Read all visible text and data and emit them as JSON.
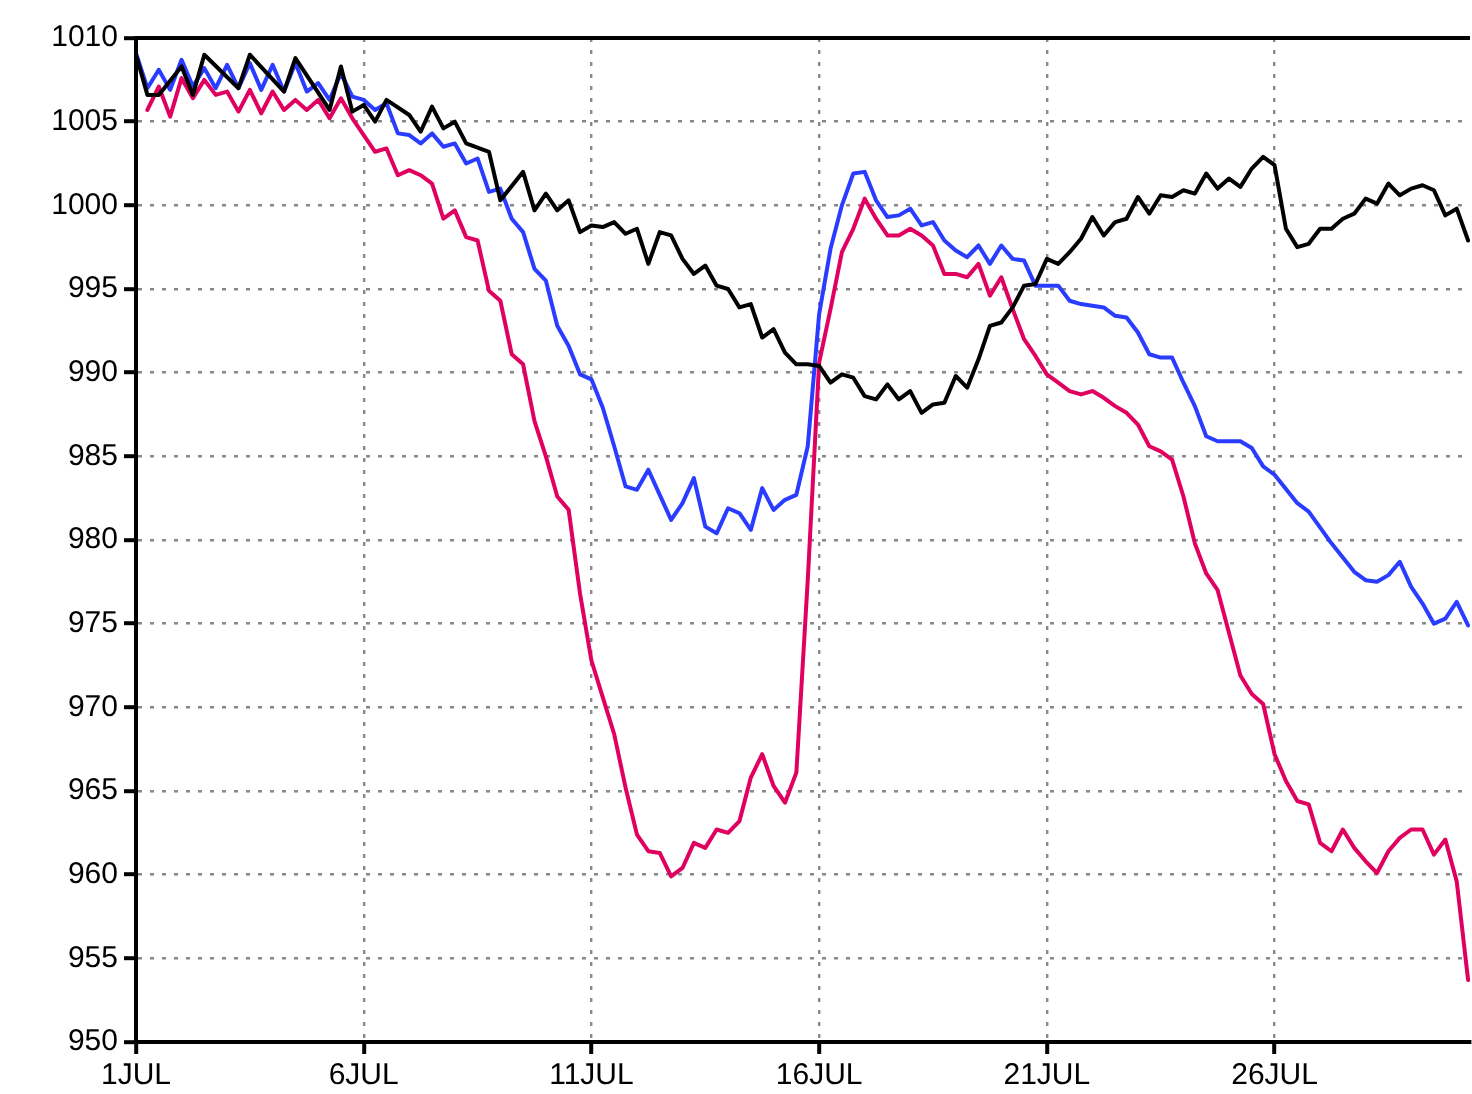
{
  "chart_data": {
    "type": "line",
    "line_style": "solid",
    "marker": "none",
    "grid": true,
    "legend": false,
    "xlim": [
      "--07-01T00:00",
      "--07-30T07:00"
    ],
    "xticks": [
      {
        "value": "--07-01",
        "label": "1JUL"
      },
      {
        "value": "--07-06",
        "label": "6JUL"
      },
      {
        "value": "--07-11",
        "label": "11JUL"
      },
      {
        "value": "--07-16",
        "label": "16JUL"
      },
      {
        "value": "--07-21",
        "label": "21JUL"
      },
      {
        "value": "--07-26",
        "label": "26JUL"
      }
    ],
    "ylim": [
      950,
      1010
    ],
    "yticks": [
      950,
      955,
      960,
      965,
      970,
      975,
      980,
      985,
      990,
      995,
      1000,
      1005,
      1010
    ],
    "series": [
      {
        "color": "#000000",
        "x": [
          "--07-01T00:00",
          "--07-01T06:00",
          "--07-01T12:00",
          "--07-02T00:00",
          "--07-02T06:00",
          "--07-02T12:00",
          "--07-03T06:00",
          "--07-03T12:00",
          "--07-04T06:00",
          "--07-04T12:00",
          "--07-05T06:00",
          "--07-05T12:00",
          "--07-05T18:00",
          "--07-06T00:00",
          "--07-06T06:00",
          "--07-06T12:00",
          "--07-07T00:00",
          "--07-07T06:00",
          "--07-07T12:00",
          "--07-07T18:00",
          "--07-08T00:00",
          "--07-08T06:00",
          "--07-08T18:00",
          "--07-09T00:00",
          "--07-09T12:00",
          "--07-09T18:00",
          "--07-10T00:00",
          "--07-10T06:00",
          "--07-10T12:00",
          "--07-10T18:00",
          "--07-11T00:00",
          "--07-11T06:00",
          "--07-11T12:00",
          "--07-11T18:00",
          "--07-12T00:00",
          "--07-12T06:00",
          "--07-12T12:00",
          "--07-12T18:00",
          "--07-13T00:00",
          "--07-13T06:00",
          "--07-13T12:00",
          "--07-13T18:00",
          "--07-14T00:00",
          "--07-14T06:00",
          "--07-14T12:00",
          "--07-14T18:00",
          "--07-15T00:00",
          "--07-15T06:00",
          "--07-15T12:00",
          "--07-15T18:00",
          "--07-16T00:00",
          "--07-16T06:00",
          "--07-16T12:00",
          "--07-16T18:00",
          "--07-17T00:00",
          "--07-17T06:00",
          "--07-17T12:00",
          "--07-17T18:00",
          "--07-18T00:00",
          "--07-18T06:00",
          "--07-18T12:00",
          "--07-18T18:00",
          "--07-19T00:00",
          "--07-19T06:00",
          "--07-19T12:00",
          "--07-19T18:00",
          "--07-20T00:00",
          "--07-20T06:00",
          "--07-20T12:00",
          "--07-20T18:00",
          "--07-21T00:00",
          "--07-21T06:00",
          "--07-21T12:00",
          "--07-21T18:00",
          "--07-22T00:00",
          "--07-22T06:00",
          "--07-22T12:00",
          "--07-22T18:00",
          "--07-23T00:00",
          "--07-23T06:00",
          "--07-23T12:00",
          "--07-23T18:00",
          "--07-24T00:00",
          "--07-24T06:00",
          "--07-24T12:00",
          "--07-24T18:00",
          "--07-25T00:00",
          "--07-25T06:00",
          "--07-25T12:00",
          "--07-25T18:00",
          "--07-26T00:00",
          "--07-26T06:00",
          "--07-26T12:00",
          "--07-26T18:00",
          "--07-27T00:00",
          "--07-27T06:00",
          "--07-27T12:00",
          "--07-27T18:00",
          "--07-28T00:00",
          "--07-28T06:00",
          "--07-28T12:00",
          "--07-28T18:00",
          "--07-29T00:00",
          "--07-29T06:00",
          "--07-29T12:00",
          "--07-29T18:00",
          "--07-30T00:00",
          "--07-30T06:00"
        ],
        "values": [
          1009.0,
          1006.6,
          1006.6,
          1008.3,
          1006.6,
          1009.0,
          1007.0,
          1009.0,
          1006.8,
          1008.8,
          1005.7,
          1008.3,
          1005.6,
          1006.0,
          1005.0,
          1006.3,
          1005.4,
          1004.4,
          1005.9,
          1004.6,
          1005.0,
          1003.7,
          1003.2,
          1000.3,
          1002.0,
          999.7,
          1000.7,
          999.7,
          1000.3,
          998.4,
          998.8,
          998.7,
          999.0,
          998.3,
          998.6,
          996.5,
          998.4,
          998.2,
          996.8,
          995.9,
          996.4,
          995.2,
          995.0,
          993.9,
          994.1,
          992.1,
          992.6,
          991.2,
          990.5,
          990.5,
          990.4,
          989.4,
          989.9,
          989.7,
          988.6,
          988.4,
          989.3,
          988.4,
          988.9,
          987.6,
          988.1,
          988.2,
          989.8,
          989.1,
          990.8,
          992.8,
          993.0,
          993.9,
          995.2,
          995.3,
          996.8,
          996.5,
          997.2,
          998.0,
          999.3,
          998.2,
          999.0,
          999.2,
          1000.5,
          999.5,
          1000.6,
          1000.5,
          1000.9,
          1000.7,
          1001.9,
          1001.0,
          1001.6,
          1001.1,
          1002.2,
          1002.9,
          1002.4,
          998.6,
          997.5,
          997.7,
          998.6,
          998.6,
          999.2,
          999.5,
          1000.4,
          1000.1,
          1001.3,
          1000.6,
          1001.0,
          1001.2,
          1000.9,
          999.4,
          999.8,
          997.9
        ]
      },
      {
        "color": "#2a3cff",
        "x": [
          "--07-01T00:00",
          "--07-01T06:00",
          "--07-01T12:00",
          "--07-01T18:00",
          "--07-02T00:00",
          "--07-02T06:00",
          "--07-02T12:00",
          "--07-02T18:00",
          "--07-03T00:00",
          "--07-03T06:00",
          "--07-03T12:00",
          "--07-03T18:00",
          "--07-04T00:00",
          "--07-04T06:00",
          "--07-04T12:00",
          "--07-04T18:00",
          "--07-05T00:00",
          "--07-05T06:00",
          "--07-05T12:00",
          "--07-05T18:00",
          "--07-06T00:00",
          "--07-06T06:00",
          "--07-06T12:00",
          "--07-06T18:00",
          "--07-07T00:00",
          "--07-07T06:00",
          "--07-07T12:00",
          "--07-07T18:00",
          "--07-08T00:00",
          "--07-08T06:00",
          "--07-08T12:00",
          "--07-08T18:00",
          "--07-09T00:00",
          "--07-09T06:00",
          "--07-09T12:00",
          "--07-09T18:00",
          "--07-10T00:00",
          "--07-10T06:00",
          "--07-10T12:00",
          "--07-10T18:00",
          "--07-11T00:00",
          "--07-11T06:00",
          "--07-11T12:00",
          "--07-11T18:00",
          "--07-12T00:00",
          "--07-12T06:00",
          "--07-12T12:00",
          "--07-12T18:00",
          "--07-13T00:00",
          "--07-13T06:00",
          "--07-13T12:00",
          "--07-13T18:00",
          "--07-14T00:00",
          "--07-14T06:00",
          "--07-14T12:00",
          "--07-14T18:00",
          "--07-15T00:00",
          "--07-15T06:00",
          "--07-15T12:00",
          "--07-15T18:00",
          "--07-16T00:00",
          "--07-16T06:00",
          "--07-16T12:00",
          "--07-16T18:00",
          "--07-17T00:00",
          "--07-17T06:00",
          "--07-17T12:00",
          "--07-17T18:00",
          "--07-18T00:00",
          "--07-18T06:00",
          "--07-18T12:00",
          "--07-18T18:00",
          "--07-19T00:00",
          "--07-19T06:00",
          "--07-19T12:00",
          "--07-19T18:00",
          "--07-20T00:00",
          "--07-20T06:00",
          "--07-20T12:00",
          "--07-20T18:00",
          "--07-21T06:00",
          "--07-21T12:00",
          "--07-21T18:00",
          "--07-22T06:00",
          "--07-22T12:00",
          "--07-22T18:00",
          "--07-23T00:00",
          "--07-23T06:00",
          "--07-23T12:00",
          "--07-23T18:00",
          "--07-24T00:00",
          "--07-24T06:00",
          "--07-24T12:00",
          "--07-24T18:00",
          "--07-25T00:00",
          "--07-25T06:00",
          "--07-25T12:00",
          "--07-25T18:00",
          "--07-26T00:00",
          "--07-26T12:00",
          "--07-26T18:00",
          "--07-27T06:00",
          "--07-27T18:00",
          "--07-28T00:00",
          "--07-28T06:00",
          "--07-28T12:00",
          "--07-28T18:00",
          "--07-29T00:00",
          "--07-29T06:00",
          "--07-29T12:00",
          "--07-29T18:00",
          "--07-30T00:00",
          "--07-30T06:00"
        ],
        "values": [
          1009.1,
          1007.0,
          1008.1,
          1006.9,
          1008.7,
          1007.1,
          1008.2,
          1007.0,
          1008.4,
          1007.0,
          1008.5,
          1006.9,
          1008.4,
          1006.8,
          1008.5,
          1006.8,
          1007.3,
          1006.3,
          1007.9,
          1006.5,
          1006.3,
          1005.7,
          1006.1,
          1004.3,
          1004.2,
          1003.7,
          1004.3,
          1003.5,
          1003.7,
          1002.5,
          1002.8,
          1000.8,
          1001.0,
          999.2,
          998.4,
          996.2,
          995.5,
          992.8,
          991.6,
          989.9,
          989.6,
          987.9,
          985.6,
          983.2,
          983.0,
          984.2,
          982.7,
          981.2,
          982.2,
          983.7,
          980.8,
          980.4,
          981.9,
          981.6,
          980.6,
          983.1,
          981.8,
          982.4,
          982.7,
          985.6,
          993.5,
          997.4,
          1000.0,
          1001.9,
          1002.0,
          1000.3,
          999.3,
          999.4,
          999.8,
          998.8,
          999.0,
          997.9,
          997.3,
          996.9,
          997.6,
          996.5,
          997.6,
          996.8,
          996.7,
          995.2,
          995.2,
          994.3,
          994.1,
          993.9,
          993.4,
          993.3,
          992.4,
          991.1,
          990.9,
          990.9,
          989.4,
          988.0,
          986.2,
          985.9,
          985.9,
          985.9,
          985.5,
          984.4,
          983.9,
          982.2,
          981.7,
          979.8,
          978.1,
          977.6,
          977.5,
          977.9,
          978.7,
          977.2,
          976.2,
          975.0,
          975.3,
          976.3,
          974.9
        ]
      },
      {
        "color": "#e0005f",
        "x": [
          "--07-01T06:00",
          "--07-01T12:00",
          "--07-01T18:00",
          "--07-02T00:00",
          "--07-02T06:00",
          "--07-02T12:00",
          "--07-02T18:00",
          "--07-03T00:00",
          "--07-03T06:00",
          "--07-03T12:00",
          "--07-03T18:00",
          "--07-04T00:00",
          "--07-04T06:00",
          "--07-04T12:00",
          "--07-04T18:00",
          "--07-05T00:00",
          "--07-05T06:00",
          "--07-05T12:00",
          "--07-05T18:00",
          "--07-06T00:00",
          "--07-06T06:00",
          "--07-06T12:00",
          "--07-06T18:00",
          "--07-07T00:00",
          "--07-07T06:00",
          "--07-07T12:00",
          "--07-07T18:00",
          "--07-08T00:00",
          "--07-08T06:00",
          "--07-08T12:00",
          "--07-08T18:00",
          "--07-09T00:00",
          "--07-09T06:00",
          "--07-09T12:00",
          "--07-09T18:00",
          "--07-10T00:00",
          "--07-10T06:00",
          "--07-10T12:00",
          "--07-10T18:00",
          "--07-11T00:00",
          "--07-11T06:00",
          "--07-11T12:00",
          "--07-11T18:00",
          "--07-12T00:00",
          "--07-12T06:00",
          "--07-12T12:00",
          "--07-12T18:00",
          "--07-13T00:00",
          "--07-13T06:00",
          "--07-13T12:00",
          "--07-13T18:00",
          "--07-14T00:00",
          "--07-14T06:00",
          "--07-14T12:00",
          "--07-14T18:00",
          "--07-15T00:00",
          "--07-15T06:00",
          "--07-15T12:00",
          "--07-15T18:00",
          "--07-16T00:00",
          "--07-16T06:00",
          "--07-16T12:00",
          "--07-16T18:00",
          "--07-17T00:00",
          "--07-17T06:00",
          "--07-17T12:00",
          "--07-17T18:00",
          "--07-18T00:00",
          "--07-18T06:00",
          "--07-18T12:00",
          "--07-18T18:00",
          "--07-19T00:00",
          "--07-19T06:00",
          "--07-19T12:00",
          "--07-19T18:00",
          "--07-20T00:00",
          "--07-20T06:00",
          "--07-20T12:00",
          "--07-20T18:00",
          "--07-21T00:00",
          "--07-21T06:00",
          "--07-21T12:00",
          "--07-21T18:00",
          "--07-22T00:00",
          "--07-22T06:00",
          "--07-22T12:00",
          "--07-22T18:00",
          "--07-23T00:00",
          "--07-23T06:00",
          "--07-23T12:00",
          "--07-23T18:00",
          "--07-24T00:00",
          "--07-24T06:00",
          "--07-24T12:00",
          "--07-24T18:00",
          "--07-25T06:00",
          "--07-25T12:00",
          "--07-25T18:00",
          "--07-26T00:00",
          "--07-26T06:00",
          "--07-26T12:00",
          "--07-26T18:00",
          "--07-27T00:00",
          "--07-27T06:00",
          "--07-27T12:00",
          "--07-27T18:00",
          "--07-28T00:00",
          "--07-28T06:00",
          "--07-28T12:00",
          "--07-28T18:00",
          "--07-29T00:00",
          "--07-29T06:00",
          "--07-29T12:00",
          "--07-29T18:00",
          "--07-30T00:00",
          "--07-30T06:00"
        ],
        "values": [
          1005.7,
          1007.1,
          1005.3,
          1007.6,
          1006.4,
          1007.5,
          1006.6,
          1006.8,
          1005.6,
          1006.9,
          1005.5,
          1006.8,
          1005.7,
          1006.3,
          1005.7,
          1006.3,
          1005.2,
          1006.4,
          1005.2,
          1004.2,
          1003.2,
          1003.4,
          1001.8,
          1002.1,
          1001.8,
          1001.3,
          999.2,
          999.7,
          998.1,
          997.9,
          994.9,
          994.3,
          991.1,
          990.5,
          987.1,
          985.0,
          982.6,
          981.8,
          976.8,
          972.8,
          970.6,
          968.4,
          965.2,
          962.4,
          961.4,
          961.3,
          959.9,
          960.4,
          961.9,
          961.6,
          962.7,
          962.5,
          963.2,
          965.8,
          967.2,
          965.3,
          964.3,
          966.1,
          977.6,
          990.6,
          993.8,
          997.2,
          998.6,
          1000.4,
          999.2,
          998.2,
          998.2,
          998.6,
          998.2,
          997.6,
          995.9,
          995.9,
          995.7,
          996.5,
          994.6,
          995.7,
          993.8,
          992.0,
          991.0,
          989.9,
          989.4,
          988.9,
          988.7,
          988.9,
          988.5,
          988.0,
          987.6,
          986.9,
          985.6,
          985.3,
          984.8,
          982.6,
          979.8,
          978.0,
          977.0,
          971.9,
          970.8,
          970.2,
          967.2,
          965.6,
          964.4,
          964.2,
          961.9,
          961.4,
          962.7,
          961.6,
          960.8,
          960.1,
          961.4,
          962.2,
          962.7,
          962.7,
          961.2,
          962.1,
          959.6,
          953.7
        ]
      }
    ]
  }
}
